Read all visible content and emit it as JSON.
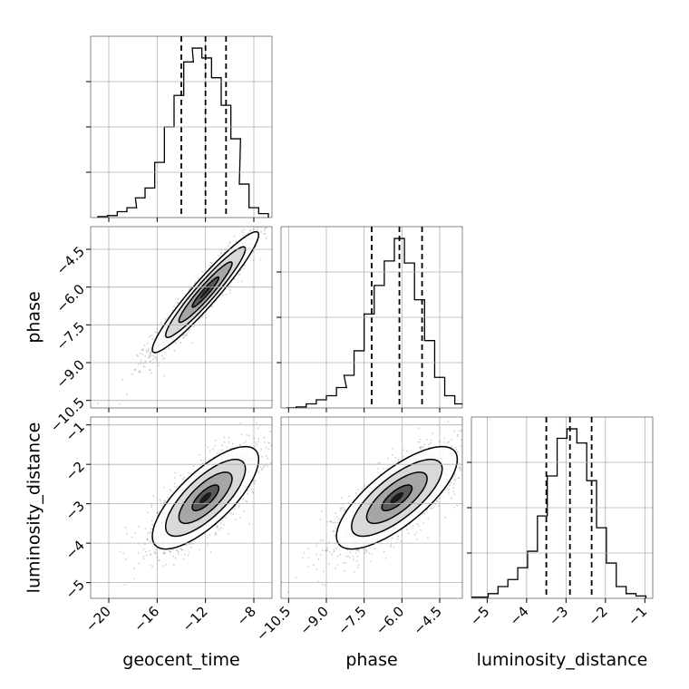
{
  "chart_data": {
    "type": "corner",
    "parameters": [
      "geocent_time",
      "phase",
      "luminosity_distance"
    ],
    "xlabels": [
      "geocent_time",
      "phase",
      "luminosity_distance"
    ],
    "ylabels": [
      "",
      "phase",
      "luminosity_distance"
    ],
    "grid": true,
    "colors": {
      "line": "#000000",
      "grid": "#b0b0b0",
      "scatter": "#555555"
    },
    "parameter_ranges": {
      "geocent_time": [
        -21.5,
        -6.5
      ],
      "phase": [
        -10.8,
        -3.6
      ],
      "luminosity_distance": [
        -5.4,
        -0.8
      ]
    },
    "ticks": {
      "geocent_time": {
        "values": [
          -20,
          -16,
          -12,
          -8
        ],
        "labels": [
          "−20",
          "−16",
          "−12",
          "−8"
        ]
      },
      "phase": {
        "values": [
          -10.5,
          -9.0,
          -7.5,
          -6.0,
          -4.5
        ],
        "labels": [
          "−10.5",
          "−9.0",
          "−7.5",
          "−6.0",
          "−4.5"
        ]
      },
      "luminosity_distance": {
        "values": [
          -5,
          -4,
          -3,
          -2,
          -1
        ],
        "labels": [
          "−5",
          "−4",
          "−3",
          "−2",
          "−1"
        ]
      }
    },
    "quantiles": {
      "geocent_time": [
        -14.0,
        -12.0,
        -10.3
      ],
      "phase": [
        -7.2,
        -6.1,
        -5.2
      ],
      "luminosity_distance": [
        -3.5,
        -2.9,
        -2.35
      ]
    },
    "histograms": {
      "geocent_time": {
        "x": [
          -20.5,
          -19.7,
          -18.9,
          -18.1,
          -17.4,
          -16.6,
          -15.8,
          -15.0,
          -14.2,
          -13.4,
          -12.7,
          -11.9,
          -11.1,
          -10.3,
          -9.5,
          -8.8,
          -8.0,
          -7.2
        ],
        "values": [
          0.005,
          0.01,
          0.03,
          0.05,
          0.1,
          0.15,
          0.28,
          0.46,
          0.62,
          0.79,
          0.86,
          0.81,
          0.71,
          0.57,
          0.4,
          0.17,
          0.05,
          0.02
        ]
      },
      "phase": {
        "x": [
          -10.4,
          -10.0,
          -9.6,
          -9.2,
          -8.8,
          -8.4,
          -8.1,
          -7.7,
          -7.3,
          -6.9,
          -6.5,
          -6.1,
          -5.7,
          -5.3,
          -4.9,
          -4.5,
          -4.1,
          -3.7
        ],
        "values": [
          0.0,
          0.005,
          0.02,
          0.04,
          0.06,
          0.1,
          0.16,
          0.28,
          0.46,
          0.6,
          0.72,
          0.83,
          0.71,
          0.53,
          0.33,
          0.15,
          0.06,
          0.02
        ]
      },
      "luminosity_distance": {
        "x": [
          -5.35,
          -5.1,
          -4.85,
          -4.6,
          -4.35,
          -4.1,
          -3.85,
          -3.6,
          -3.35,
          -3.1,
          -2.85,
          -2.6,
          -2.35,
          -2.1,
          -1.85,
          -1.6,
          -1.35,
          -1.1
        ],
        "values": [
          0.005,
          0.005,
          0.02,
          0.05,
          0.08,
          0.13,
          0.2,
          0.35,
          0.52,
          0.68,
          0.72,
          0.66,
          0.5,
          0.3,
          0.15,
          0.05,
          0.02,
          0.01
        ]
      }
    },
    "correlations": {
      "phase|geocent_time": {
        "rho": 0.95,
        "mean": [
          -12.0,
          -6.2
        ],
        "sd": [
          2.2,
          1.2
        ]
      },
      "luminosity_distance|geocent_time": {
        "rho": 0.75,
        "mean": [
          -12.0,
          -2.85
        ],
        "sd": [
          2.2,
          0.65
        ]
      },
      "luminosity_distance|phase": {
        "rho": 0.75,
        "mean": [
          -6.2,
          -2.85
        ],
        "sd": [
          1.2,
          0.65
        ]
      }
    }
  }
}
